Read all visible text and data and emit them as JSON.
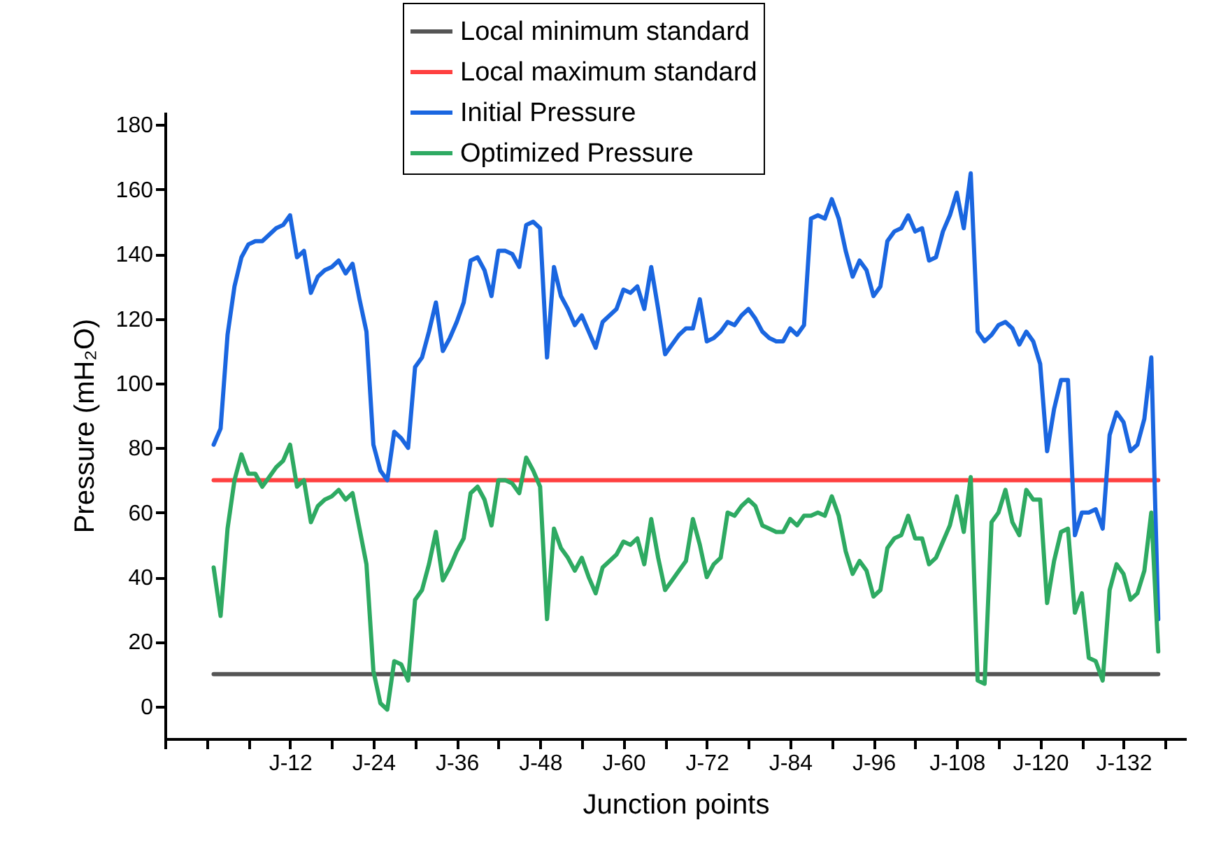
{
  "chart_data": {
    "type": "line",
    "xlabel": "Junction points",
    "ylabel": "Pressure (mH₂O)",
    "legend": "top",
    "ylim": [
      -10,
      184
    ],
    "yticks": [
      0,
      20,
      40,
      60,
      80,
      100,
      120,
      140,
      160,
      180
    ],
    "categories": [
      null,
      null,
      null,
      null,
      null,
      null,
      null,
      null,
      null,
      null,
      null,
      "J-12",
      null,
      null,
      null,
      null,
      null,
      null,
      null,
      null,
      null,
      null,
      null,
      "J-24",
      null,
      null,
      null,
      null,
      null,
      null,
      null,
      null,
      null,
      null,
      null,
      "J-36",
      null,
      null,
      null,
      null,
      null,
      null,
      null,
      null,
      null,
      null,
      null,
      "J-48",
      null,
      null,
      null,
      null,
      null,
      null,
      null,
      null,
      null,
      null,
      null,
      "J-60",
      null,
      null,
      null,
      null,
      null,
      null,
      null,
      null,
      null,
      null,
      null,
      "J-72",
      null,
      null,
      null,
      null,
      null,
      null,
      null,
      null,
      null,
      null,
      null,
      "J-84",
      null,
      null,
      null,
      null,
      null,
      null,
      null,
      null,
      null,
      null,
      null,
      "J-96",
      null,
      null,
      null,
      null,
      null,
      null,
      null,
      null,
      null,
      null,
      null,
      "J-108",
      null,
      null,
      null,
      null,
      null,
      null,
      null,
      null,
      null,
      null,
      null,
      "J-120",
      null,
      null,
      null,
      null,
      null,
      null,
      null,
      null,
      null,
      null,
      null,
      "J-132",
      null,
      null,
      null,
      null,
      null
    ],
    "series": [
      {
        "name": "Local minimum standard",
        "color": "#555555",
        "values": [
          10,
          10,
          10,
          10,
          10,
          10,
          10,
          10,
          10,
          10,
          10,
          10,
          10,
          10,
          10,
          10,
          10,
          10,
          10,
          10,
          10,
          10,
          10,
          10,
          10,
          10,
          10,
          10,
          10,
          10,
          10,
          10,
          10,
          10,
          10,
          10,
          10,
          10,
          10,
          10,
          10,
          10,
          10,
          10,
          10,
          10,
          10,
          10,
          10,
          10,
          10,
          10,
          10,
          10,
          10,
          10,
          10,
          10,
          10,
          10,
          10,
          10,
          10,
          10,
          10,
          10,
          10,
          10,
          10,
          10,
          10,
          10,
          10,
          10,
          10,
          10,
          10,
          10,
          10,
          10,
          10,
          10,
          10,
          10,
          10,
          10,
          10,
          10,
          10,
          10,
          10,
          10,
          10,
          10,
          10,
          10,
          10,
          10,
          10,
          10,
          10,
          10,
          10,
          10,
          10,
          10,
          10,
          10,
          10,
          10,
          10,
          10,
          10,
          10,
          10,
          10,
          10,
          10,
          10,
          10,
          10,
          10,
          10,
          10,
          10,
          10,
          10,
          10,
          10,
          10,
          10,
          10,
          10,
          10,
          10,
          10,
          10
        ]
      },
      {
        "name": "Local maximum standard",
        "color": "#ff4040",
        "values": [
          70,
          70,
          70,
          70,
          70,
          70,
          70,
          70,
          70,
          70,
          70,
          70,
          70,
          70,
          70,
          70,
          70,
          70,
          70,
          70,
          70,
          70,
          70,
          70,
          70,
          70,
          70,
          70,
          70,
          70,
          70,
          70,
          70,
          70,
          70,
          70,
          70,
          70,
          70,
          70,
          70,
          70,
          70,
          70,
          70,
          70,
          70,
          70,
          70,
          70,
          70,
          70,
          70,
          70,
          70,
          70,
          70,
          70,
          70,
          70,
          70,
          70,
          70,
          70,
          70,
          70,
          70,
          70,
          70,
          70,
          70,
          70,
          70,
          70,
          70,
          70,
          70,
          70,
          70,
          70,
          70,
          70,
          70,
          70,
          70,
          70,
          70,
          70,
          70,
          70,
          70,
          70,
          70,
          70,
          70,
          70,
          70,
          70,
          70,
          70,
          70,
          70,
          70,
          70,
          70,
          70,
          70,
          70,
          70,
          70,
          70,
          70,
          70,
          70,
          70,
          70,
          70,
          70,
          70,
          70,
          70,
          70,
          70,
          70,
          70,
          70,
          70,
          70,
          70,
          70,
          70,
          70,
          70,
          70,
          70,
          70,
          70
        ]
      },
      {
        "name": "Initial Pressure",
        "color": "#1a66e0",
        "values": [
          81,
          86,
          115,
          130,
          139,
          143,
          144,
          144,
          146,
          148,
          149,
          152,
          139,
          141,
          128,
          133,
          135,
          136,
          138,
          134,
          137,
          126,
          116,
          81,
          73,
          70,
          85,
          83,
          80,
          105,
          108,
          116,
          125,
          110,
          114,
          119,
          125,
          138,
          139,
          135,
          127,
          141,
          141,
          140,
          136,
          149,
          150,
          148,
          108,
          136,
          127,
          123,
          118,
          121,
          116,
          111,
          119,
          121,
          123,
          129,
          128,
          130,
          123,
          136,
          123,
          109,
          112,
          115,
          117,
          117,
          126,
          113,
          114,
          116,
          119,
          118,
          121,
          123,
          120,
          116,
          114,
          113,
          113,
          117,
          115,
          118,
          151,
          152,
          151,
          157,
          151,
          141,
          133,
          138,
          135,
          127,
          130,
          144,
          147,
          148,
          152,
          147,
          148,
          138,
          139,
          147,
          152,
          159,
          148,
          165,
          116,
          113,
          115,
          118,
          119,
          117,
          112,
          116,
          113,
          106,
          79,
          92,
          101,
          101,
          53,
          60,
          60,
          61,
          55,
          84,
          91,
          88,
          79,
          81,
          89,
          108,
          27
        ]
      },
      {
        "name": "Optimized Pressure",
        "color": "#2eaa62",
        "values": [
          43,
          28,
          55,
          70,
          78,
          72,
          72,
          68,
          71,
          74,
          76,
          81,
          68,
          70,
          57,
          62,
          64,
          65,
          67,
          64,
          66,
          55,
          44,
          11,
          1,
          -1,
          14,
          13,
          8,
          33,
          36,
          44,
          54,
          39,
          43,
          48,
          52,
          66,
          68,
          64,
          56,
          70,
          70,
          69,
          66,
          77,
          73,
          68,
          27,
          55,
          49,
          46,
          42,
          46,
          40,
          35,
          43,
          45,
          47,
          51,
          50,
          52,
          44,
          58,
          46,
          36,
          39,
          42,
          45,
          58,
          50,
          40,
          44,
          46,
          60,
          59,
          62,
          64,
          62,
          56,
          55,
          54,
          54,
          58,
          56,
          59,
          59,
          60,
          59,
          65,
          59,
          48,
          41,
          45,
          42,
          34,
          36,
          49,
          52,
          53,
          59,
          52,
          52,
          44,
          46,
          51,
          56,
          65,
          54,
          71,
          8,
          7,
          57,
          60,
          67,
          57,
          53,
          67,
          64,
          64,
          32,
          45,
          54,
          55,
          29,
          35,
          15,
          14,
          8,
          36,
          44,
          41,
          33,
          35,
          42,
          60,
          17
        ]
      }
    ]
  }
}
